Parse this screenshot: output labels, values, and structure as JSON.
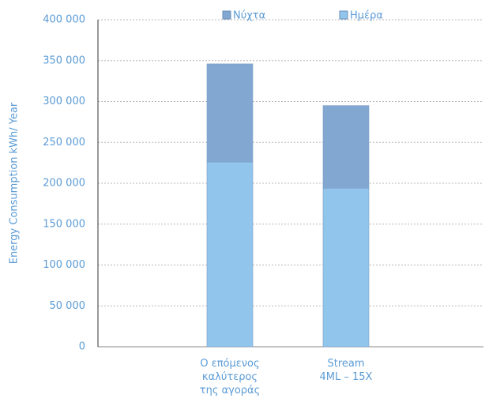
{
  "chart_data": {
    "type": "bar",
    "stacked": true,
    "y_label": "Energy Consumption kWh/ Year",
    "categories": [
      "Ο επόμενος\nκαλύτερος\nτης αγοράς",
      "Stream\n4ML – 15X"
    ],
    "series": [
      {
        "name": "Νύχτα",
        "color": "#82a8d2",
        "values": [
          120000,
          101000
        ]
      },
      {
        "name": "Ημέρα",
        "color": "#92c5ec",
        "values": [
          226000,
          194000
        ]
      }
    ],
    "ylim": [
      0,
      400000
    ],
    "yticks": [
      0,
      {
        "value": 50000,
        "label": "50 000"
      },
      {
        "value": 100000,
        "label": "100 000"
      },
      {
        "value": 150000,
        "label": "150 000"
      },
      {
        "value": 200000,
        "label": "200 000"
      },
      {
        "value": 250000,
        "label": "250 000"
      },
      {
        "value": 300000,
        "label": "300 000"
      },
      {
        "value": 350000,
        "label": "350 000"
      },
      {
        "value": 400000,
        "label": "400 000"
      }
    ],
    "grid": true,
    "legend": "top"
  }
}
